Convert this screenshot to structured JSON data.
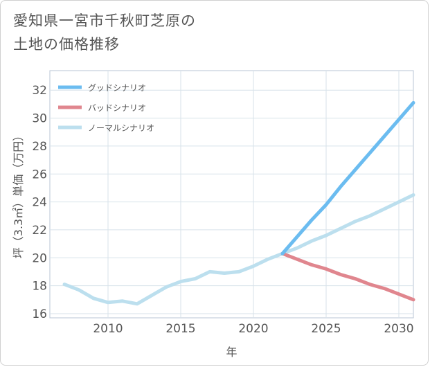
{
  "title_line1": "愛知県一宮市千秋町芝原の",
  "title_line2": "土地の価格推移",
  "chart_data": {
    "type": "line",
    "xlabel": "年",
    "ylabel": "坪（3.3㎡）単価（万円）",
    "xlim": [
      2006,
      2031
    ],
    "ylim": [
      15.7,
      33.4
    ],
    "xticks": [
      2010,
      2015,
      2020,
      2025,
      2030
    ],
    "yticks": [
      16,
      18,
      20,
      22,
      24,
      26,
      28,
      30,
      32
    ],
    "grid": true,
    "legend_position": "top-left",
    "series": [
      {
        "name": "グッドシナリオ",
        "color": "#6bbcf0",
        "x": [
          2022,
          2023,
          2024,
          2025,
          2026,
          2027,
          2028,
          2029,
          2030,
          2031
        ],
        "y": [
          20.3,
          21.5,
          22.7,
          23.8,
          25.1,
          26.3,
          27.5,
          28.7,
          29.9,
          31.1
        ]
      },
      {
        "name": "バッドシナリオ",
        "color": "#e0868e",
        "x": [
          2022,
          2023,
          2024,
          2025,
          2026,
          2027,
          2028,
          2029,
          2030,
          2031
        ],
        "y": [
          20.3,
          19.9,
          19.5,
          19.2,
          18.8,
          18.5,
          18.1,
          17.8,
          17.4,
          17.0
        ]
      },
      {
        "name": "ノーマルシナリオ",
        "color": "#bcdfee",
        "x": [
          2007,
          2008,
          2009,
          2010,
          2011,
          2012,
          2013,
          2014,
          2015,
          2016,
          2017,
          2018,
          2019,
          2020,
          2021,
          2022,
          2023,
          2024,
          2025,
          2026,
          2027,
          2028,
          2029,
          2030,
          2031
        ],
        "y": [
          18.1,
          17.7,
          17.1,
          16.8,
          16.9,
          16.7,
          17.3,
          17.9,
          18.3,
          18.5,
          19.0,
          18.9,
          19.0,
          19.4,
          19.9,
          20.3,
          20.7,
          21.2,
          21.6,
          22.1,
          22.6,
          23.0,
          23.5,
          24.0,
          24.5
        ]
      }
    ]
  }
}
